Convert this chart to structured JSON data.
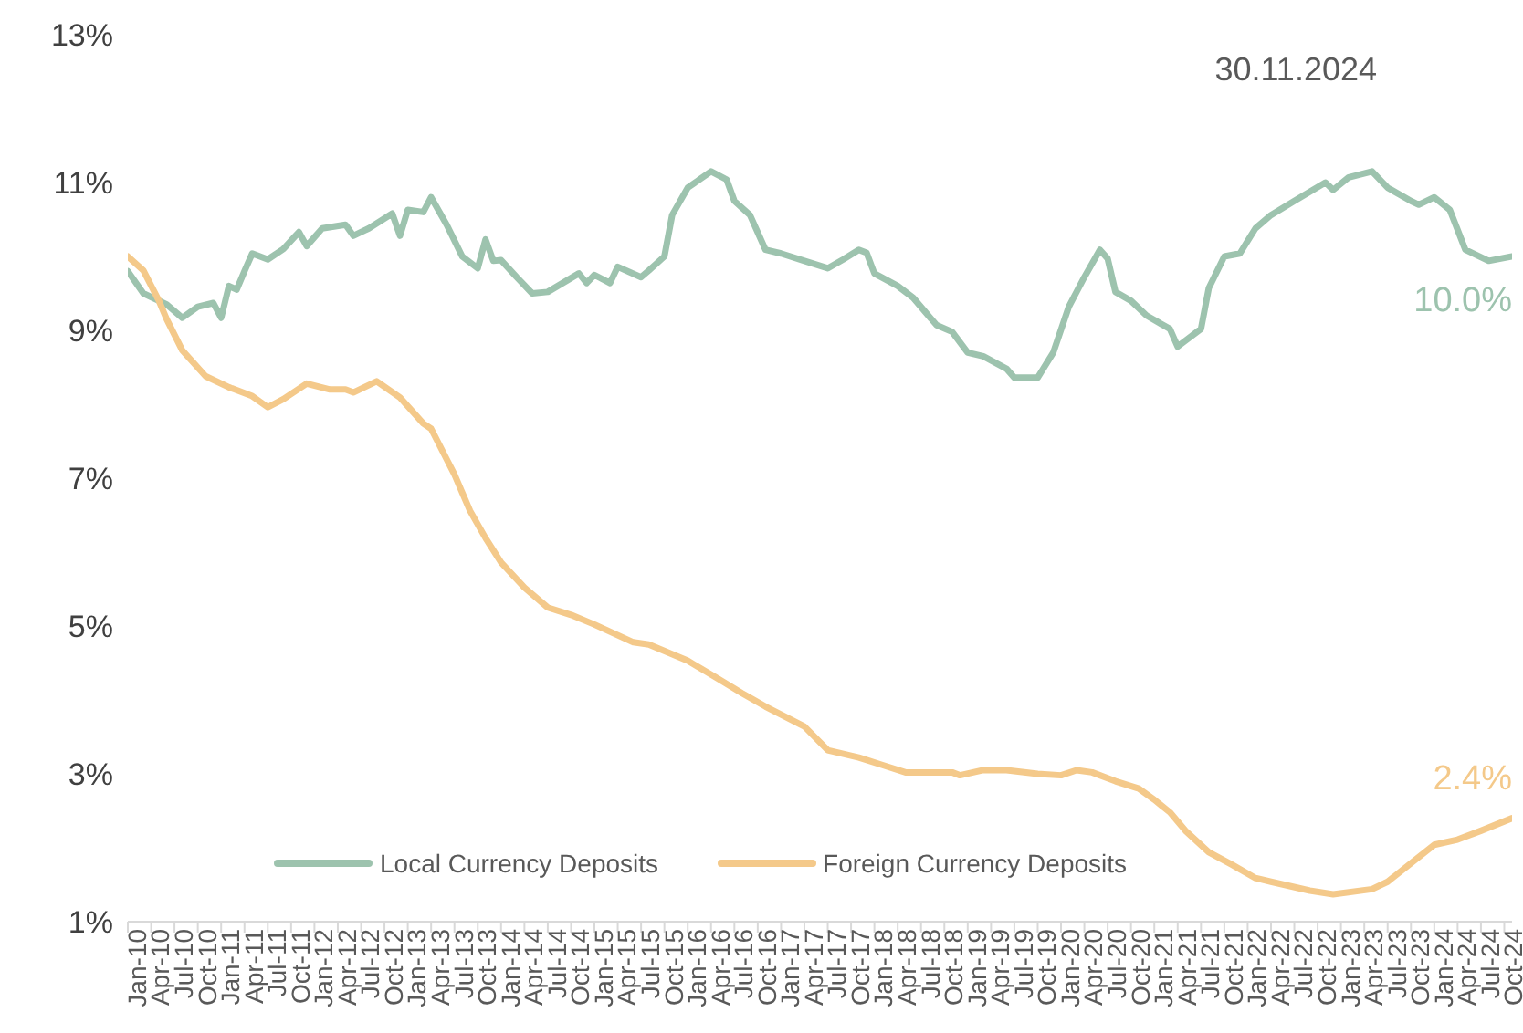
{
  "chart_data": {
    "type": "line",
    "title": "30.11.2024",
    "xlim": [
      "2010-01",
      "2024-11"
    ],
    "xticks": [
      {
        "value": "2010-01",
        "label": "Jan-10"
      },
      {
        "value": "2010-04",
        "label": "Apr-10"
      },
      {
        "value": "2010-07",
        "label": "Jul-10"
      },
      {
        "value": "2010-10",
        "label": "Oct-10"
      },
      {
        "value": "2011-01",
        "label": "Jan-11"
      },
      {
        "value": "2011-04",
        "label": "Apr-11"
      },
      {
        "value": "2011-07",
        "label": "Jul-11"
      },
      {
        "value": "2011-10",
        "label": "Oct-11"
      },
      {
        "value": "2012-01",
        "label": "Jan-12"
      },
      {
        "value": "2012-04",
        "label": "Apr-12"
      },
      {
        "value": "2012-07",
        "label": "Jul-12"
      },
      {
        "value": "2012-10",
        "label": "Oct-12"
      },
      {
        "value": "2013-01",
        "label": "Jan-13"
      },
      {
        "value": "2013-04",
        "label": "Apr-13"
      },
      {
        "value": "2013-07",
        "label": "Jul-13"
      },
      {
        "value": "2013-10",
        "label": "Oct-13"
      },
      {
        "value": "2014-01",
        "label": "Jan-14"
      },
      {
        "value": "2014-04",
        "label": "Apr-14"
      },
      {
        "value": "2014-07",
        "label": "Jul-14"
      },
      {
        "value": "2014-10",
        "label": "Oct-14"
      },
      {
        "value": "2015-01",
        "label": "Jan-15"
      },
      {
        "value": "2015-04",
        "label": "Apr-15"
      },
      {
        "value": "2015-07",
        "label": "Jul-15"
      },
      {
        "value": "2015-10",
        "label": "Oct-15"
      },
      {
        "value": "2016-01",
        "label": "Jan-16"
      },
      {
        "value": "2016-04",
        "label": "Apr-16"
      },
      {
        "value": "2016-07",
        "label": "Jul-16"
      },
      {
        "value": "2016-10",
        "label": "Oct-16"
      },
      {
        "value": "2017-01",
        "label": "Jan-17"
      },
      {
        "value": "2017-04",
        "label": "Apr-17"
      },
      {
        "value": "2017-07",
        "label": "Jul-17"
      },
      {
        "value": "2017-10",
        "label": "Oct-17"
      },
      {
        "value": "2018-01",
        "label": "Jan-18"
      },
      {
        "value": "2018-04",
        "label": "Apr-18"
      },
      {
        "value": "2018-07",
        "label": "Jul-18"
      },
      {
        "value": "2018-10",
        "label": "Oct-18"
      },
      {
        "value": "2019-01",
        "label": "Jan-19"
      },
      {
        "value": "2019-04",
        "label": "Apr-19"
      },
      {
        "value": "2019-07",
        "label": "Jul-19"
      },
      {
        "value": "2019-10",
        "label": "Oct-19"
      },
      {
        "value": "2020-01",
        "label": "Jan-20"
      },
      {
        "value": "2020-04",
        "label": "Apr-20"
      },
      {
        "value": "2020-07",
        "label": "Jul-20"
      },
      {
        "value": "2020-10",
        "label": "Oct-20"
      },
      {
        "value": "2021-01",
        "label": "Jan-21"
      },
      {
        "value": "2021-04",
        "label": "Apr-21"
      },
      {
        "value": "2021-07",
        "label": "Jul-21"
      },
      {
        "value": "2021-10",
        "label": "Oct-21"
      },
      {
        "value": "2022-01",
        "label": "Jan-22"
      },
      {
        "value": "2022-04",
        "label": "Apr-22"
      },
      {
        "value": "2022-07",
        "label": "Jul-22"
      },
      {
        "value": "2022-10",
        "label": "Oct-22"
      },
      {
        "value": "2023-01",
        "label": "Jan-23"
      },
      {
        "value": "2023-04",
        "label": "Apr-23"
      },
      {
        "value": "2023-07",
        "label": "Jul-23"
      },
      {
        "value": "2023-10",
        "label": "Oct-23"
      },
      {
        "value": "2024-01",
        "label": "Jan-24"
      },
      {
        "value": "2024-04",
        "label": "Apr-24"
      },
      {
        "value": "2024-07",
        "label": "Jul-24"
      },
      {
        "value": "2024-10",
        "label": "Oct-24"
      }
    ],
    "ylim": [
      1,
      13
    ],
    "yticks": [
      {
        "value": 1,
        "label": "1%"
      },
      {
        "value": 3,
        "label": "3%"
      },
      {
        "value": 5,
        "label": "5%"
      },
      {
        "value": 7,
        "label": "7%"
      },
      {
        "value": 9,
        "label": "9%"
      },
      {
        "value": 11,
        "label": "11%"
      },
      {
        "value": 13,
        "label": "13%"
      }
    ],
    "grid": false,
    "legend": "bottom left",
    "marker": "none",
    "line_style": "solid",
    "series": [
      {
        "name": "Local Currency Deposits",
        "color": "#9dc3ae",
        "x": [
          "2010-01",
          "2010-03",
          "2010-06",
          "2010-08",
          "2010-10",
          "2010-12",
          "2011-01",
          "2011-02",
          "2011-03",
          "2011-04",
          "2011-05",
          "2011-07",
          "2011-09",
          "2011-11",
          "2011-12",
          "2012-02",
          "2012-05",
          "2012-06",
          "2012-08",
          "2012-11",
          "2012-12",
          "2013-01",
          "2013-03",
          "2013-04",
          "2013-06",
          "2013-08",
          "2013-10",
          "2013-11",
          "2013-12",
          "2014-01",
          "2014-03",
          "2014-05",
          "2014-07",
          "2014-11",
          "2014-12",
          "2015-01",
          "2015-03",
          "2015-04",
          "2015-07",
          "2015-08",
          "2015-10",
          "2015-11",
          "2016-01",
          "2016-04",
          "2016-06",
          "2016-07",
          "2016-09",
          "2016-11",
          "2017-01",
          "2017-04",
          "2017-07",
          "2017-09",
          "2017-11",
          "2017-12",
          "2018-01",
          "2018-04",
          "2018-06",
          "2018-09",
          "2018-11",
          "2019-01",
          "2019-03",
          "2019-06",
          "2019-07",
          "2019-10",
          "2019-12",
          "2020-02",
          "2020-04",
          "2020-06",
          "2020-07",
          "2020-08",
          "2020-10",
          "2020-12",
          "2021-03",
          "2021-04",
          "2021-07",
          "2021-08",
          "2021-10",
          "2021-12",
          "2022-02",
          "2022-04",
          "2022-07",
          "2022-11",
          "2022-12",
          "2023-02",
          "2023-05",
          "2023-07",
          "2023-10",
          "2023-11",
          "2024-01",
          "2024-03",
          "2024-05",
          "2024-08",
          "2024-11"
        ],
        "values": [
          9.8,
          9.5,
          9.35,
          9.17,
          9.32,
          9.37,
          9.17,
          9.6,
          9.55,
          9.8,
          10.04,
          9.96,
          10.1,
          10.33,
          10.14,
          10.38,
          10.43,
          10.28,
          10.38,
          10.58,
          10.28,
          10.63,
          10.6,
          10.8,
          10.43,
          10.0,
          9.84,
          10.23,
          9.94,
          9.95,
          9.72,
          9.5,
          9.52,
          9.77,
          9.64,
          9.75,
          9.64,
          9.86,
          9.72,
          9.81,
          10.0,
          10.56,
          10.93,
          11.15,
          11.04,
          10.75,
          10.56,
          10.09,
          10.04,
          9.94,
          9.84,
          9.96,
          10.09,
          10.05,
          9.77,
          9.6,
          9.44,
          9.07,
          8.98,
          8.7,
          8.65,
          8.48,
          8.36,
          8.36,
          8.7,
          9.32,
          9.72,
          10.09,
          9.97,
          9.52,
          9.4,
          9.2,
          9.02,
          8.78,
          9.02,
          9.57,
          10.0,
          10.04,
          10.38,
          10.56,
          10.75,
          11.0,
          10.9,
          11.07,
          11.15,
          10.93,
          10.75,
          10.7,
          10.8,
          10.63,
          10.09,
          9.94,
          10.0
        ],
        "value_labels": [
          null,
          null,
          null,
          null,
          null,
          null,
          null,
          null,
          null,
          null,
          null,
          null,
          null,
          null,
          null,
          null,
          null,
          null,
          null,
          null,
          null,
          null,
          null,
          null,
          null,
          null,
          null,
          null,
          null,
          null,
          null,
          null,
          null,
          null,
          null,
          null,
          null,
          null,
          null,
          null,
          null,
          null,
          null,
          null,
          null,
          null,
          null,
          null,
          null,
          null,
          null,
          null,
          null,
          null,
          null,
          null,
          null,
          null,
          null,
          null,
          null,
          null,
          null,
          null,
          null,
          null,
          null,
          null,
          null,
          null,
          null,
          null,
          null,
          null,
          null,
          null,
          null,
          null,
          null,
          null,
          null,
          null,
          null,
          null,
          null,
          null,
          null,
          null,
          null,
          null,
          null,
          null,
          "10.0%"
        ]
      },
      {
        "name": "Foreign Currency Deposits",
        "color": "#f4c98a",
        "x": [
          "2010-01",
          "2010-03",
          "2010-05",
          "2010-06",
          "2010-08",
          "2010-11",
          "2011-02",
          "2011-05",
          "2011-07",
          "2011-09",
          "2011-12",
          "2012-03",
          "2012-05",
          "2012-06",
          "2012-09",
          "2012-12",
          "2013-03",
          "2013-04",
          "2013-07",
          "2013-09",
          "2013-11",
          "2014-01",
          "2014-04",
          "2014-07",
          "2014-10",
          "2015-01",
          "2015-06",
          "2015-08",
          "2016-01",
          "2016-05",
          "2016-08",
          "2016-11",
          "2017-04",
          "2017-07",
          "2017-11",
          "2018-02",
          "2018-05",
          "2018-11",
          "2018-12",
          "2019-03",
          "2019-06",
          "2019-10",
          "2020-01",
          "2020-03",
          "2020-05",
          "2020-08",
          "2020-11",
          "2021-01",
          "2021-03",
          "2021-05",
          "2021-08",
          "2021-11",
          "2022-02",
          "2022-04",
          "2022-09",
          "2022-12",
          "2023-05",
          "2023-07",
          "2023-10",
          "2024-01",
          "2024-04",
          "2024-07",
          "2024-11"
        ],
        "values": [
          10.0,
          9.81,
          9.4,
          9.15,
          8.73,
          8.38,
          8.23,
          8.11,
          7.96,
          8.07,
          8.28,
          8.2,
          8.2,
          8.16,
          8.31,
          8.09,
          7.74,
          7.67,
          7.05,
          6.56,
          6.19,
          5.86,
          5.52,
          5.25,
          5.15,
          5.02,
          4.78,
          4.75,
          4.53,
          4.28,
          4.09,
          3.91,
          3.64,
          3.32,
          3.22,
          3.12,
          3.02,
          3.02,
          2.98,
          3.05,
          3.05,
          3.0,
          2.98,
          3.05,
          3.02,
          2.9,
          2.8,
          2.65,
          2.48,
          2.23,
          1.94,
          1.77,
          1.59,
          1.54,
          1.42,
          1.37,
          1.44,
          1.54,
          1.79,
          2.04,
          2.11,
          2.23,
          2.4
        ],
        "value_labels": [
          null,
          null,
          null,
          null,
          null,
          null,
          null,
          null,
          null,
          null,
          null,
          null,
          null,
          null,
          null,
          null,
          null,
          null,
          null,
          null,
          null,
          null,
          null,
          null,
          null,
          null,
          null,
          null,
          null,
          null,
          null,
          null,
          null,
          null,
          null,
          null,
          null,
          null,
          null,
          null,
          null,
          null,
          null,
          null,
          null,
          null,
          null,
          null,
          null,
          null,
          null,
          null,
          null,
          null,
          null,
          null,
          null,
          null,
          null,
          null,
          null,
          null,
          "2.4%"
        ]
      }
    ]
  }
}
